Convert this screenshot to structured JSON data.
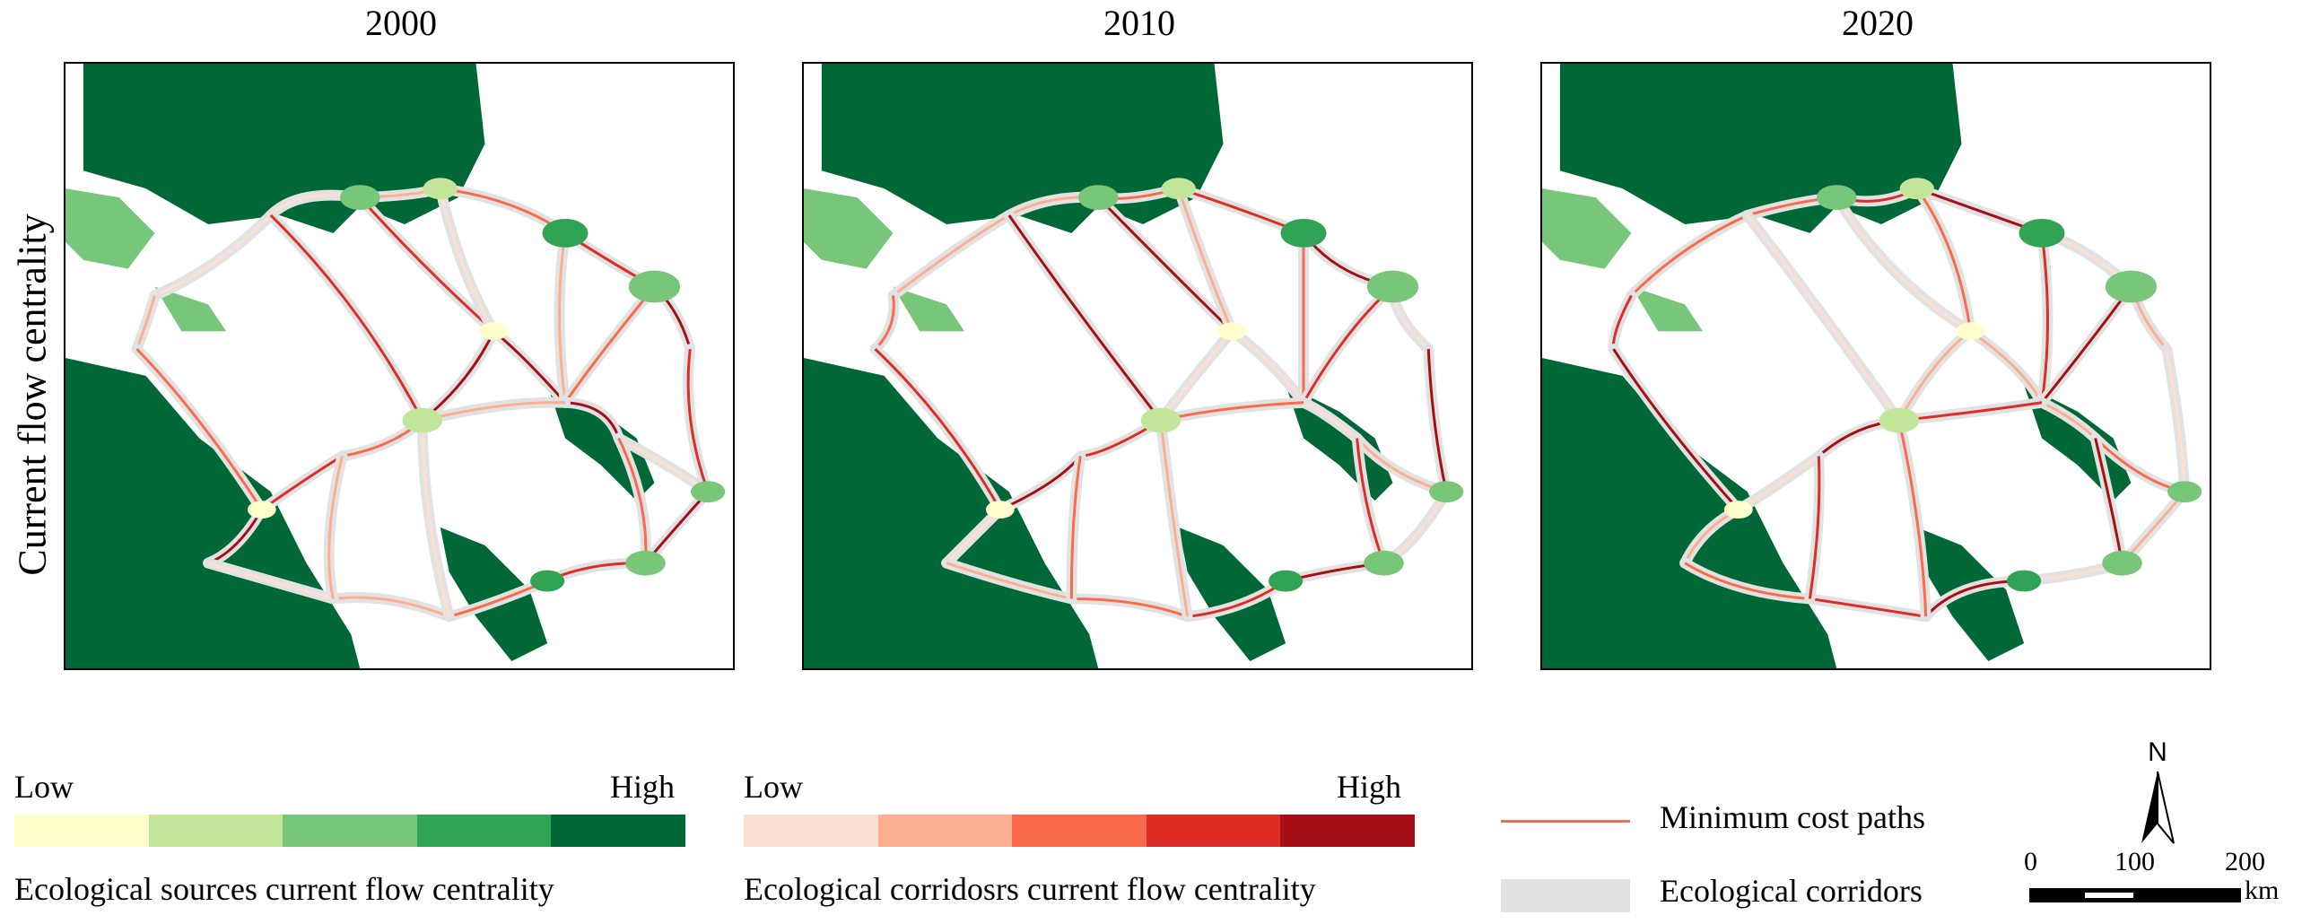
{
  "panels": [
    {
      "year": "2000"
    },
    {
      "year": "2010"
    },
    {
      "year": "2020"
    }
  ],
  "row_label": "Current flow centrality",
  "legend": {
    "sources": {
      "low": "Low",
      "high": "High",
      "title": "Ecological sources current flow centrality",
      "colors": [
        "#ffffcc",
        "#c2e699",
        "#78c679",
        "#31a354",
        "#006837"
      ]
    },
    "corridors": {
      "low": "Low",
      "high": "High",
      "title": "Ecological corridosrs current flow centrality",
      "colors": [
        "#fee0d2",
        "#fcae91",
        "#fb6a4a",
        "#de2d26",
        "#a50f15"
      ]
    },
    "paths_label": "Minimum cost paths",
    "corridor_label": "Ecological corridors",
    "path_color": "#e5735f",
    "corridor_color": "#e2e2e2"
  },
  "scale_bar": {
    "labels": [
      "0",
      "100",
      "200"
    ],
    "unit": "km",
    "north": "N"
  }
}
